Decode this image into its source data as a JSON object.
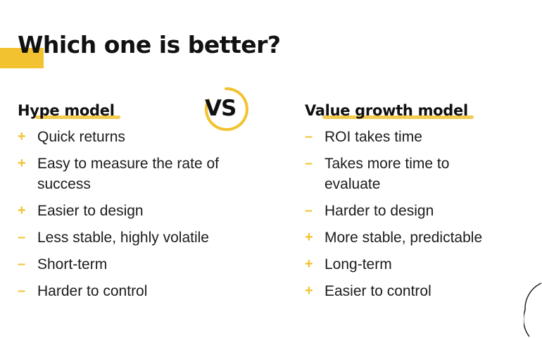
{
  "title": "Which one is better?",
  "vs_label": "VS",
  "accent_color": "#f2c230",
  "left": {
    "heading": "Hype model",
    "items": [
      {
        "sign": "+",
        "text": "Quick returns"
      },
      {
        "sign": "+",
        "text": "Easy to measure the rate of success"
      },
      {
        "sign": "+",
        "text": "Easier to design"
      },
      {
        "sign": "–",
        "text": "Less stable, highly volatile"
      },
      {
        "sign": "–",
        "text": "Short-term"
      },
      {
        "sign": "–",
        "text": "Harder to control"
      }
    ]
  },
  "right": {
    "heading": "Value growth model",
    "items": [
      {
        "sign": "–",
        "text": "ROI takes time"
      },
      {
        "sign": "–",
        "text": "Takes more time to evaluate"
      },
      {
        "sign": "–",
        "text": "Harder to design"
      },
      {
        "sign": "+",
        "text": "More stable, predictable"
      },
      {
        "sign": "+",
        "text": "Long-term"
      },
      {
        "sign": "+",
        "text": "Easier to control"
      }
    ]
  }
}
